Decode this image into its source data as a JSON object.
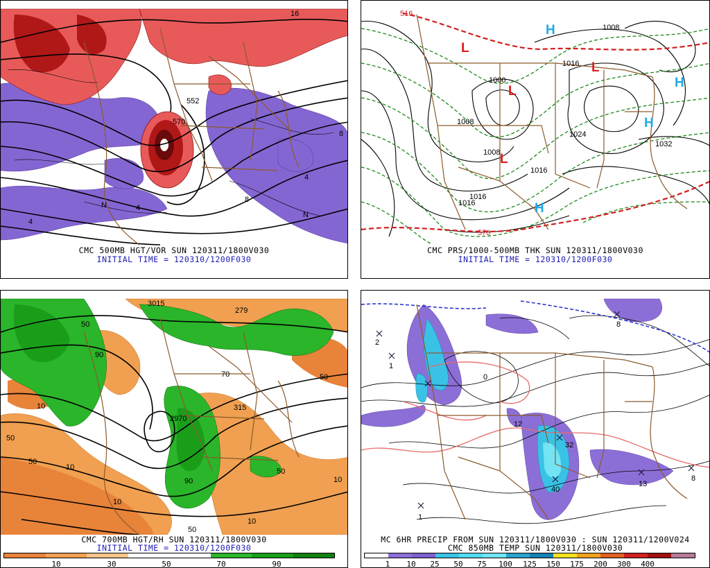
{
  "panels": {
    "p500": {
      "caption": "CMC 500MB HGT/VOR SUN 120311/1800V030",
      "initial": "INITIAL TIME = 120310/1200F030",
      "labels": [
        "570",
        "552",
        "4",
        "8",
        "4",
        "N",
        "4",
        "N",
        "8",
        "16"
      ]
    },
    "prs": {
      "caption": "CMC PRS/1000-500MB THK SUN 120311/1800V030",
      "initial": "INITIAL TIME = 120310/1200F030",
      "labels": [
        "516",
        "1000",
        "1008",
        "1008",
        "1016",
        "1024",
        "1032",
        "1016",
        "1016",
        "570",
        "1008",
        "1016"
      ],
      "highs": [
        "H",
        "H",
        "H",
        "H"
      ],
      "lows": [
        "L",
        "L",
        "L",
        "L"
      ]
    },
    "p700": {
      "caption": "CMC 700MB HGT/RH SUN 120311/1800V030",
      "initial": "INITIAL TIME = 120310/1200F030",
      "labels": [
        "50",
        "10",
        "50",
        "90",
        "90",
        "50",
        "10",
        "50",
        "10",
        "70",
        "50",
        "10",
        "315",
        "3015",
        "2970",
        "279",
        "50",
        "10"
      ],
      "colorbar_labels": [
        "10",
        "30",
        "50",
        "70",
        "90"
      ],
      "colors": [
        "#e8833a",
        "#f0a050",
        "#f6c48c",
        "#ffffff",
        "#ffffff",
        "#2ab52a",
        "#1a9e1a",
        "#118011"
      ]
    },
    "precip": {
      "caption": "MC 6HR PRECIP FROM SUN 120311/1800V030 : SUN 120311/1200V024",
      "initial": "CMC 850MB TEMP SUN 120311/1800V030",
      "labels": [
        "2",
        "1",
        "8",
        "0",
        "12",
        "32",
        "40",
        "13",
        "8",
        "1"
      ],
      "colorbar_labels": [
        "1",
        "10",
        "25",
        "50",
        "75",
        "100",
        "125",
        "150",
        "175",
        "200",
        "300",
        "400"
      ],
      "colors": [
        "#ffffff",
        "#8c6fd6",
        "#7e5fd0",
        "#3ac2e6",
        "#52d9f2",
        "#72e4f4",
        "#2aa3cc",
        "#1682b4",
        "#f0e020",
        "#f0a020",
        "#e06020",
        "#d02020",
        "#a01010",
        "#b47a96"
      ]
    }
  }
}
